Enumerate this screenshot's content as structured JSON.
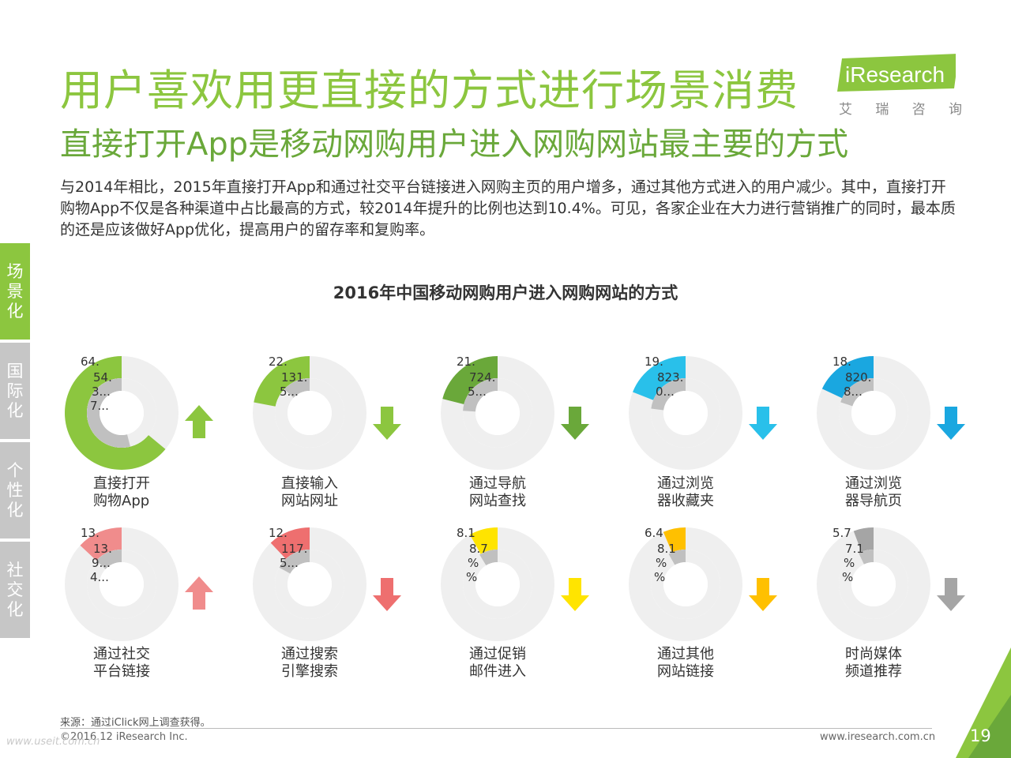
{
  "header": {
    "title": "用户喜欢用更直接的方式进行场景消费",
    "subtitle": "直接打开App是移动网购用户进入网购网站最主要的方式",
    "description": "与2014年相比，2015年直接打开App和通过社交平台链接进入网购主页的用户增多，通过其他方式进入的用户减少。其中，直接打开购物App不仅是各种渠道中占比最高的方式，较2014年提升的比例也达到10.4%。可见，各家企业在大力进行营销推广的同时，最本质的还是应该做好App优化，提高用户的留存率和复购率。"
  },
  "logo": {
    "brand": "iResearch",
    "cn_chars": [
      "艾",
      "瑞",
      "咨",
      "询"
    ]
  },
  "sidebar": [
    {
      "label_chars": [
        "场",
        "景",
        "化"
      ],
      "color": "#8cc63f",
      "active": true
    },
    {
      "label_chars": [
        "国",
        "际",
        "化"
      ],
      "color": "#c6c6c6",
      "active": false
    },
    {
      "label_chars": [
        "个",
        "性",
        "化"
      ],
      "color": "#c6c6c6",
      "active": false
    },
    {
      "label_chars": [
        "社",
        "交",
        "化"
      ],
      "color": "#c6c6c6",
      "active": false
    }
  ],
  "chart_data": {
    "type": "donut-group",
    "title": "2016年中国移动网购用户进入网购网站的方式",
    "unit": "%",
    "charts": [
      {
        "category": [
          "直接打开",
          "购物App"
        ],
        "color": "#8cc63f",
        "arrow": "up",
        "arrow_color": "#8cc63f",
        "outer": 64.0,
        "middle": 54.0,
        "outer_label": "64.",
        "middle_label": "54.",
        "extra_labels": [
          "3...",
          "7..."
        ]
      },
      {
        "category": [
          "直接输入",
          "网站网址"
        ],
        "color": "#8cc63f",
        "arrow": "down",
        "arrow_color": "#8cc63f",
        "outer": 22.0,
        "middle": 13.0,
        "outer_label": "22.",
        "middle_label": "131.",
        "extra_labels": [
          "5..."
        ]
      },
      {
        "category": [
          "通过导航",
          "网站查找"
        ],
        "color": "#6aa83a",
        "arrow": "down",
        "arrow_color": "#6aa83a",
        "outer": 21.0,
        "middle": 24.0,
        "outer_label": "21.",
        "middle_label": "724.",
        "extra_labels": [
          "5..."
        ]
      },
      {
        "category": [
          "通过浏览",
          "器收藏夹"
        ],
        "color": "#29c0ea",
        "arrow": "down",
        "arrow_color": "#29c0ea",
        "outer": 19.0,
        "middle": 23.0,
        "outer_label": "19.",
        "middle_label": "823.",
        "extra_labels": [
          "0..."
        ]
      },
      {
        "category": [
          "通过浏览",
          "器导航页"
        ],
        "color": "#1aa7e0",
        "arrow": "down",
        "arrow_color": "#1aa7e0",
        "outer": 18.0,
        "middle": 20.0,
        "outer_label": "18.",
        "middle_label": "820.",
        "extra_labels": [
          "8..."
        ]
      },
      {
        "category": [
          "通过社交",
          "平台链接"
        ],
        "color": "#f08c8c",
        "arrow": "up",
        "arrow_color": "#f08c8c",
        "outer": 13.0,
        "middle": 13.0,
        "outer_label": "13.",
        "middle_label": "13.",
        "extra_labels": [
          "9...",
          "4..."
        ]
      },
      {
        "category": [
          "通过搜索",
          "引擎搜索"
        ],
        "color": "#ee6f6f",
        "arrow": "down",
        "arrow_color": "#ee6f6f",
        "outer": 12.0,
        "middle": 17.0,
        "outer_label": "12.",
        "middle_label": "117.",
        "extra_labels": [
          "5..."
        ]
      },
      {
        "category": [
          "通过促销",
          "邮件进入"
        ],
        "color": "#ffe400",
        "arrow": "down",
        "arrow_color": "#ffe400",
        "outer": 8.1,
        "middle": 8.7,
        "outer_label": "8.1",
        "middle_label": "8.7",
        "extra_labels": [
          "%",
          "%"
        ]
      },
      {
        "category": [
          "通过其他",
          "网站链接"
        ],
        "color": "#ffc000",
        "arrow": "down",
        "arrow_color": "#ffc000",
        "outer": 6.4,
        "middle": 8.1,
        "outer_label": "6.4",
        "middle_label": "8.1",
        "extra_labels": [
          "%",
          "%"
        ]
      },
      {
        "category": [
          "时尚媒体",
          "频道推荐"
        ],
        "color": "#a5a5a5",
        "arrow": "down",
        "arrow_color": "#a5a5a5",
        "outer": 5.7,
        "middle": 7.1,
        "outer_label": "5.7",
        "middle_label": "7.1",
        "extra_labels": [
          "%",
          "%"
        ]
      }
    ]
  },
  "footer": {
    "source": "来源：通过iClick网上调查获得。",
    "copyright": "©2016.12 iResearch Inc.",
    "url": "www.iresearch.com.cn",
    "watermark": "www.useit.com.cn",
    "page_number": "19"
  },
  "colors": {
    "accent": "#8cc63f",
    "ring_bg": "#efefef",
    "middle_fill": "#c0c0c0"
  }
}
